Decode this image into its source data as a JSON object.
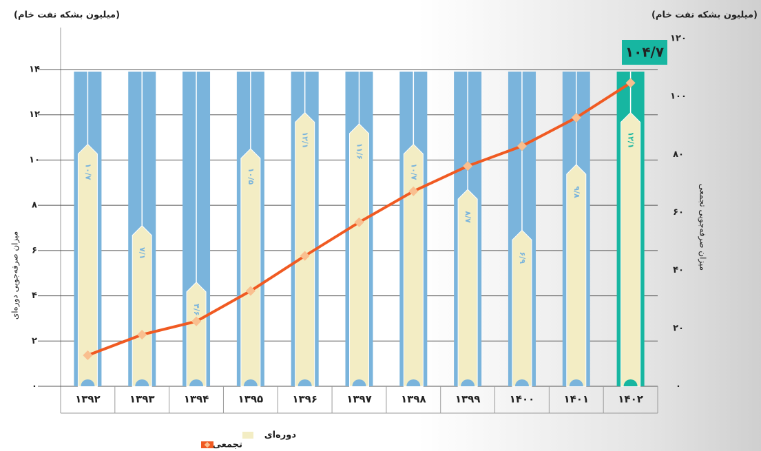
{
  "chart_data": {
    "type": "combo",
    "y_unit": "(میلیون  بشکه نفت خام)",
    "y2_unit": "(میلیون بشکه نفت خام)",
    "y_title": "میزان صرفه‌جویی دوره‌ای",
    "y2_title": "میزان صرفه‌جویی تجمعی",
    "annotation": "۱۰۴/۷",
    "categories": [
      "۱۳۹۲",
      "۱۳۹۳",
      "۱۳۹۴",
      "۱۳۹۵",
      "۱۳۹۶",
      "۱۳۹۷",
      "۱۳۹۸",
      "۱۳۹۹",
      "۱۴۰۰",
      "۱۴۰۱",
      "۱۴۰۲"
    ],
    "series": [
      {
        "name": "دوره‌ای",
        "type": "bar",
        "color": "#f3edc4",
        "column_colors": [
          "#7ab4dc",
          "#7ab4dc",
          "#7ab4dc",
          "#7ab4dc",
          "#7ab4dc",
          "#7ab4dc",
          "#7ab4dc",
          "#7ab4dc",
          "#7ab4dc",
          "#7ab4dc",
          "#17b6a1"
        ],
        "values": [
          10.7,
          7.1,
          4.6,
          10.5,
          12.1,
          11.6,
          10.7,
          8.7,
          6.9,
          9.8,
          12.1
        ],
        "value_labels": [
          "۱۰/۷",
          "۷/۱",
          "۴/۶",
          "۱۰/۵",
          "۱۲/۱",
          "۱۱/۶",
          "۱۰/۷",
          "۸/۷",
          "۶/۹",
          "۹/۸",
          "۱۲/۱"
        ]
      },
      {
        "name": "تجمعی",
        "type": "line",
        "axis": "y2",
        "color": "#f05a22",
        "marker_color": "#f9bf8f",
        "values": [
          10.7,
          17.8,
          22.4,
          32.9,
          45.0,
          56.6,
          67.3,
          76.0,
          82.9,
          92.7,
          104.7
        ]
      }
    ],
    "ylim": [
      0,
      14
    ],
    "yticks": [
      {
        "value": 0,
        "label": "۰"
      },
      {
        "value": 2,
        "label": "۲"
      },
      {
        "value": 4,
        "label": "۴"
      },
      {
        "value": 6,
        "label": "۶"
      },
      {
        "value": 8,
        "label": "۸"
      },
      {
        "value": 10,
        "label": "۱۰"
      },
      {
        "value": 12,
        "label": "۱۲"
      },
      {
        "value": 14,
        "label": "۱۴"
      }
    ],
    "y2lim": [
      0,
      120
    ],
    "y2ticks": [
      {
        "value": 0,
        "label": "۰"
      },
      {
        "value": 20,
        "label": "۲۰"
      },
      {
        "value": 40,
        "label": "۴۰"
      },
      {
        "value": 60,
        "label": "۶۰"
      },
      {
        "value": 80,
        "label": "۸۰"
      },
      {
        "value": 100,
        "label": "۱۰۰"
      },
      {
        "value": 120,
        "label": "۱۲۰"
      }
    ]
  }
}
